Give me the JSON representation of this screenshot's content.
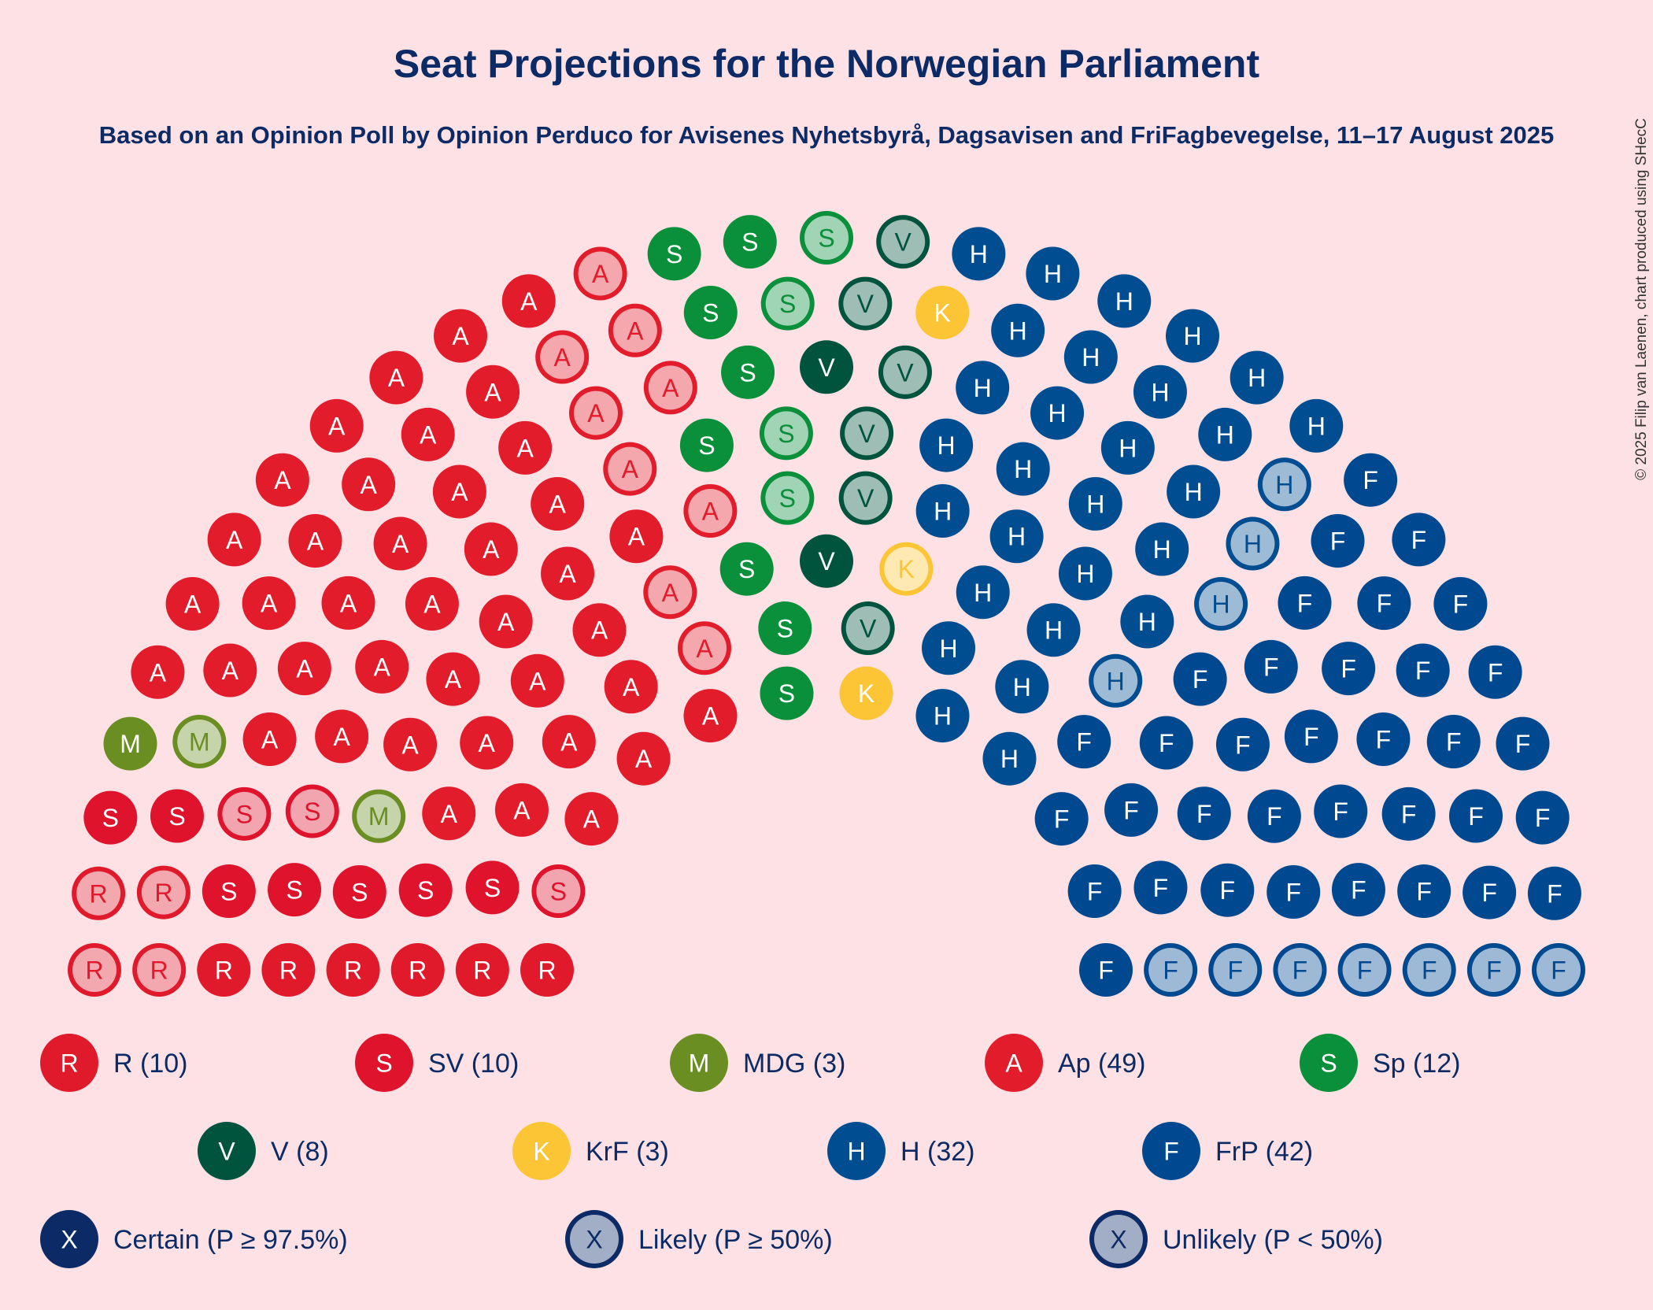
{
  "title": "Seat Projections for the Norwegian Parliament",
  "subtitle": "Based on an Opinion Poll by Opinion Perduco for Avisenes Nyhetsbyrå, Dagsavisen and FriFagbevegelse, 11–17 August 2025",
  "copyright": "© 2025 Filip van Laenen, chart produced using SHecC",
  "colors": {
    "background": "#fde1e4",
    "text": "#0c2b66",
    "R": "#e01a2b",
    "SV": "#e0132d",
    "MDG": "#6b8e23",
    "Ap": "#e31c2c",
    "Sp": "#0a8f3a",
    "V": "#00533d",
    "KrF": "#fcc535",
    "H": "#004d91",
    "FrP": "#004990",
    "certainty": "#0c2b66"
  },
  "chart_data": {
    "type": "parliament",
    "total_seats": 169,
    "parties": [
      {
        "letter": "R",
        "name": "R",
        "seats": 10,
        "certain": 6,
        "likely": 0,
        "unlikely": 4,
        "legend": "R (10)"
      },
      {
        "letter": "S",
        "name": "SV",
        "seats": 10,
        "certain": 7,
        "likely": 0,
        "unlikely": 3,
        "legend": "SV (10)"
      },
      {
        "letter": "M",
        "name": "MDG",
        "seats": 3,
        "certain": 1,
        "likely": 0,
        "unlikely": 2,
        "legend": "MDG (3)"
      },
      {
        "letter": "A",
        "name": "Ap",
        "seats": 49,
        "certain": 40,
        "likely": 0,
        "unlikely": 9,
        "legend": "Ap (49)"
      },
      {
        "letter": "S",
        "name": "Sp",
        "seats": 12,
        "certain": 8,
        "likely": 0,
        "unlikely": 4,
        "legend": "Sp (12)"
      },
      {
        "letter": "V",
        "name": "V",
        "seats": 8,
        "certain": 2,
        "likely": 6,
        "unlikely": 0,
        "legend": "V (8)"
      },
      {
        "letter": "K",
        "name": "KrF",
        "seats": 3,
        "certain": 2,
        "likely": 0,
        "unlikely": 1,
        "legend": "KrF (3)"
      },
      {
        "letter": "H",
        "name": "H",
        "seats": 32,
        "certain": 28,
        "likely": 4,
        "unlikely": 0,
        "legend": "H (32)"
      },
      {
        "letter": "F",
        "name": "FrP",
        "seats": 42,
        "certain": 35,
        "likely": 7,
        "unlikely": 0,
        "legend": "FrP (42)"
      }
    ]
  },
  "certainty_legend": [
    {
      "letter": "X",
      "label": "Certain (P ≥ 97.5%)",
      "style": "certain"
    },
    {
      "letter": "X",
      "label": "Likely (P ≥ 50%)",
      "style": "likely"
    },
    {
      "letter": "X",
      "label": "Unlikely (P < 50%)",
      "style": "unlikely"
    }
  ]
}
